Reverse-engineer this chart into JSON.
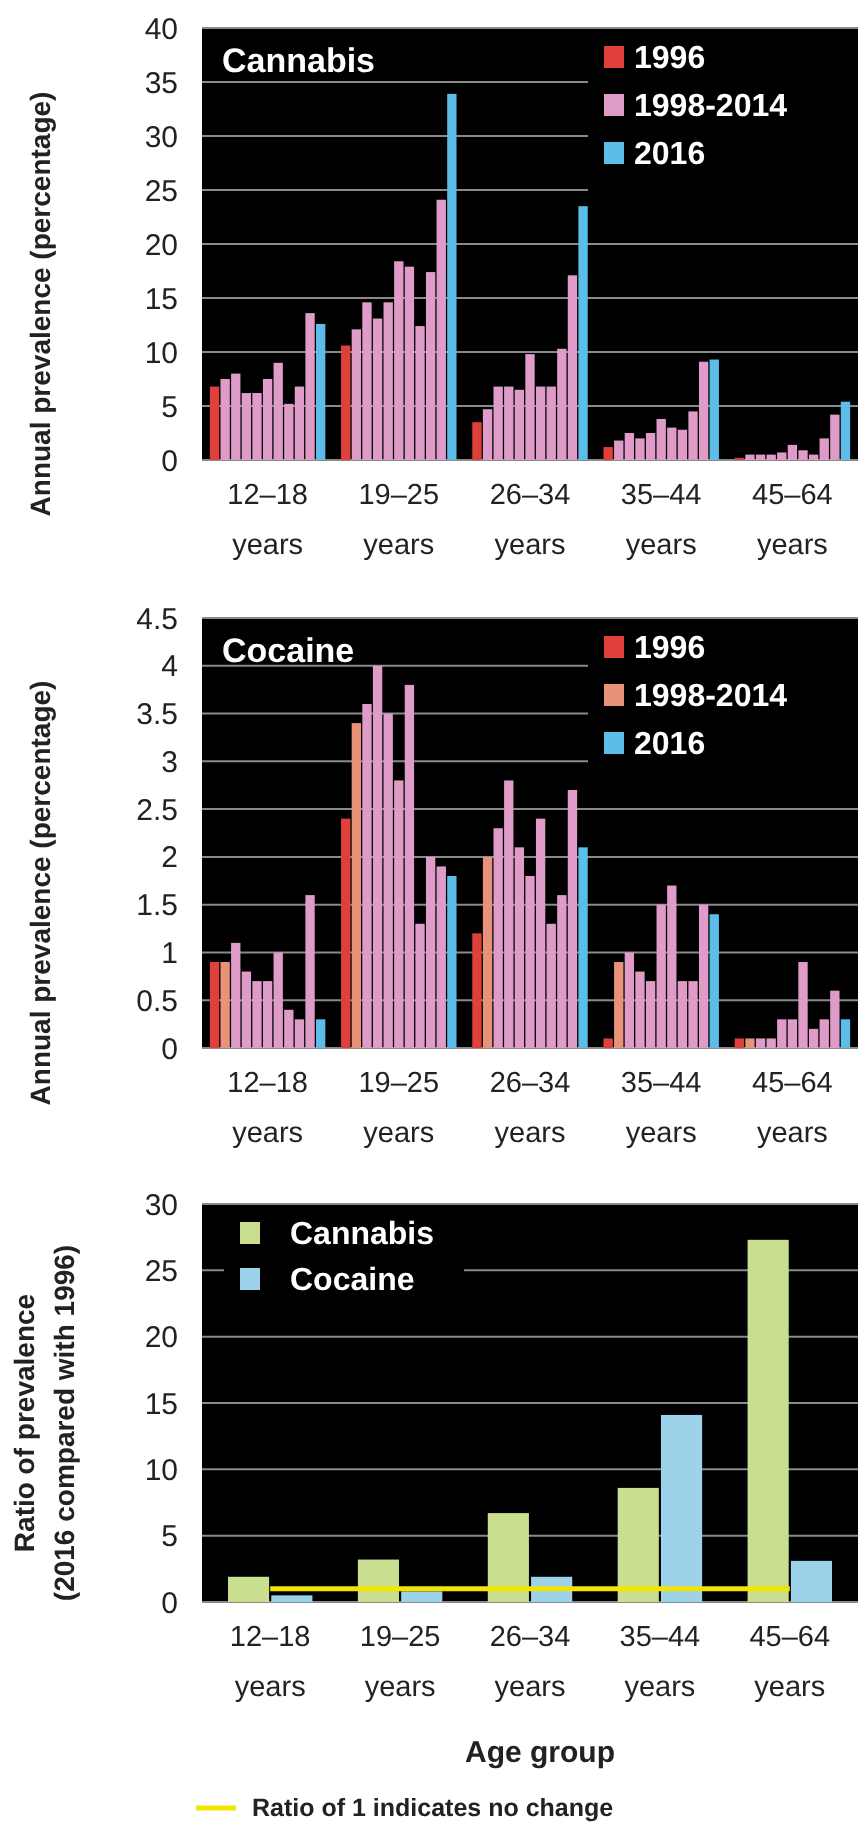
{
  "chart_data": [
    {
      "type": "bar",
      "title": "Cannabis",
      "ylabel": "Annual prevalence (percentage)",
      "categories": [
        "12–18 years",
        "19–25 years",
        "26–34 years",
        "35–44 years",
        "45–64 years"
      ],
      "ylim": [
        0,
        40
      ],
      "yticks": [
        0,
        5,
        10,
        15,
        20,
        25,
        30,
        35,
        40
      ],
      "grid": "y",
      "legend": "top right",
      "series": [
        {
          "name": "1996",
          "color": "#e0403a",
          "values": [
            6.8,
            10.6,
            3.5,
            1.2,
            0.2
          ]
        },
        {
          "name": "1998-2014",
          "color": "#e09cc8",
          "values": [
            7.5,
            12.1,
            4.7,
            1.8,
            0.5
          ]
        },
        {
          "color": "#e09cc8",
          "values": [
            8,
            14.6,
            6.8,
            2.5,
            0.5
          ]
        },
        {
          "color": "#e09cc8",
          "values": [
            6.2,
            13.1,
            6.8,
            2,
            0.5
          ]
        },
        {
          "color": "#e09cc8",
          "values": [
            6.2,
            14.6,
            6.5,
            2.5,
            0.7
          ]
        },
        {
          "color": "#e09cc8",
          "values": [
            7.5,
            18.4,
            9.8,
            3.8,
            1.4
          ]
        },
        {
          "color": "#e09cc8",
          "values": [
            9,
            17.9,
            6.8,
            3,
            0.9
          ]
        },
        {
          "color": "#e09cc8",
          "values": [
            5.2,
            12.4,
            6.8,
            2.8,
            0.5
          ]
        },
        {
          "color": "#e09cc8",
          "values": [
            6.8,
            17.4,
            10.3,
            4.5,
            2
          ]
        },
        {
          "color": "#e09cc8",
          "values": [
            13.6,
            24.1,
            17.1,
            9.1,
            4.2
          ]
        },
        {
          "name": "2016",
          "color": "#5bbde8",
          "values": [
            12.6,
            33.9,
            23.5,
            9.3,
            5.4
          ]
        }
      ]
    },
    {
      "type": "bar",
      "title": "Cocaine",
      "ylabel": "Annual prevalence (percentage)",
      "categories": [
        "12–18 years",
        "19–25 years",
        "26–34 years",
        "35–44 years",
        "45–64 years"
      ],
      "ylim": [
        0,
        4.5
      ],
      "yticks": [
        0,
        0.5,
        1,
        1.5,
        2,
        2.5,
        3,
        3.5,
        4,
        4.5
      ],
      "grid": "y",
      "legend": "top right",
      "series": [
        {
          "name": "1996",
          "color": "#e0403a",
          "values": [
            0.9,
            2.4,
            1.2,
            0.1,
            0.1
          ]
        },
        {
          "name": "1998-2014",
          "color": "#e8927a",
          "values": [
            0.9,
            3.4,
            2,
            0.9,
            0.1
          ]
        },
        {
          "color": "#e09cc8",
          "values": [
            1.1,
            3.6,
            2.3,
            1,
            0.1
          ]
        },
        {
          "color": "#e09cc8",
          "values": [
            0.8,
            4,
            2.8,
            0.8,
            0.1
          ]
        },
        {
          "color": "#e09cc8",
          "values": [
            0.7,
            3.5,
            2.1,
            0.7,
            0.3
          ]
        },
        {
          "color": "#e09cc8",
          "values": [
            0.7,
            2.8,
            1.8,
            1.5,
            0.3
          ]
        },
        {
          "color": "#e09cc8",
          "values": [
            1,
            3.8,
            2.4,
            1.7,
            0.9
          ]
        },
        {
          "color": "#e09cc8",
          "values": [
            0.4,
            1.3,
            1.3,
            0.7,
            0.2
          ]
        },
        {
          "color": "#e09cc8",
          "values": [
            0.3,
            2,
            1.6,
            0.7,
            0.3
          ]
        },
        {
          "color": "#e09cc8",
          "values": [
            1.6,
            1.9,
            2.7,
            1.5,
            0.6
          ]
        },
        {
          "name": "2016",
          "color": "#5bbde8",
          "values": [
            0.3,
            1.8,
            2.1,
            1.4,
            0.3
          ]
        }
      ]
    },
    {
      "type": "bar",
      "ylabel": "Ratio of prevalence (2016 compared with 1996)",
      "xlabel": "Age group",
      "categories": [
        "12–18 years",
        "19–25 years",
        "26–34 years",
        "35–44 years",
        "45–64 years"
      ],
      "ylim": [
        0,
        30
      ],
      "yticks": [
        0,
        5,
        10,
        15,
        20,
        25,
        30
      ],
      "grid": "y",
      "legend": "top left",
      "ref_lines": [
        {
          "axis": "y",
          "value": 1,
          "color": "#f2e600"
        }
      ],
      "annotations": [
        "Ratio of 1 indicates no change"
      ],
      "series": [
        {
          "name": "Cannabis",
          "color": "#c9df8f",
          "values": [
            1.9,
            3.2,
            6.7,
            8.6,
            27.3
          ]
        },
        {
          "name": "Cocaine",
          "color": "#9dd3ea",
          "values": [
            0.5,
            0.8,
            1.9,
            14.1,
            3.1
          ]
        }
      ]
    }
  ]
}
